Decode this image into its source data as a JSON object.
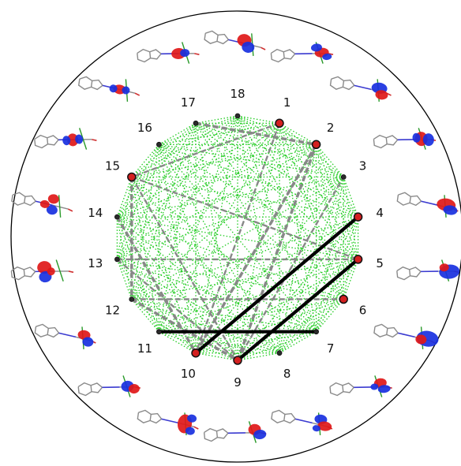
{
  "nodes": [
    {
      "id": 1,
      "label": "1"
    },
    {
      "id": 2,
      "label": "2"
    },
    {
      "id": 3,
      "label": "3"
    },
    {
      "id": 4,
      "label": "4"
    },
    {
      "id": 5,
      "label": "5"
    },
    {
      "id": 6,
      "label": "6"
    },
    {
      "id": 7,
      "label": "7"
    },
    {
      "id": 8,
      "label": "8"
    },
    {
      "id": 9,
      "label": "9"
    },
    {
      "id": 10,
      "label": "10"
    },
    {
      "id": 11,
      "label": "11"
    },
    {
      "id": 12,
      "label": "12"
    },
    {
      "id": 13,
      "label": "13"
    },
    {
      "id": 14,
      "label": "14"
    },
    {
      "id": 15,
      "label": "15"
    },
    {
      "id": 16,
      "label": "16"
    },
    {
      "id": 17,
      "label": "17"
    },
    {
      "id": 18,
      "label": "18"
    }
  ],
  "highlighted_nodes": [
    1,
    2,
    4,
    5,
    6,
    9,
    10,
    15
  ],
  "strong_edges": [
    [
      4,
      10
    ],
    [
      5,
      9
    ],
    [
      11,
      7
    ]
  ],
  "medium_edges": [
    [
      15,
      12
    ],
    [
      15,
      9
    ],
    [
      15,
      5
    ],
    [
      14,
      10
    ],
    [
      13,
      9
    ],
    [
      13,
      5
    ],
    [
      12,
      9
    ],
    [
      12,
      6
    ],
    [
      10,
      2
    ],
    [
      9,
      2
    ],
    [
      10,
      4
    ],
    [
      9,
      3
    ],
    [
      17,
      2
    ],
    [
      1,
      15
    ],
    [
      1,
      10
    ],
    [
      2,
      10
    ]
  ],
  "colors": {
    "weak_edge": "#22cc22",
    "medium_edge": "#888888",
    "strong_edge": "#000000",
    "node_fill": "#2a2a2a",
    "node_highlight": "#d42020",
    "orbital_positive": "#e01818",
    "orbital_negative": "#1830e0",
    "molecule_bond": "#8a8a8a",
    "molecule_green": "#2a9a2a",
    "outer_circle": "#000000"
  },
  "orbital_icons": [
    "orbital-1-icon",
    "orbital-2-icon",
    "orbital-3-icon",
    "orbital-4-icon",
    "orbital-5-icon",
    "orbital-6-icon",
    "orbital-7-icon",
    "orbital-8-icon",
    "orbital-9-icon",
    "orbital-10-icon",
    "orbital-11-icon",
    "orbital-12-icon",
    "orbital-13-icon",
    "orbital-14-icon",
    "orbital-15-icon",
    "orbital-16-icon",
    "orbital-17-icon",
    "orbital-18-icon"
  ]
}
